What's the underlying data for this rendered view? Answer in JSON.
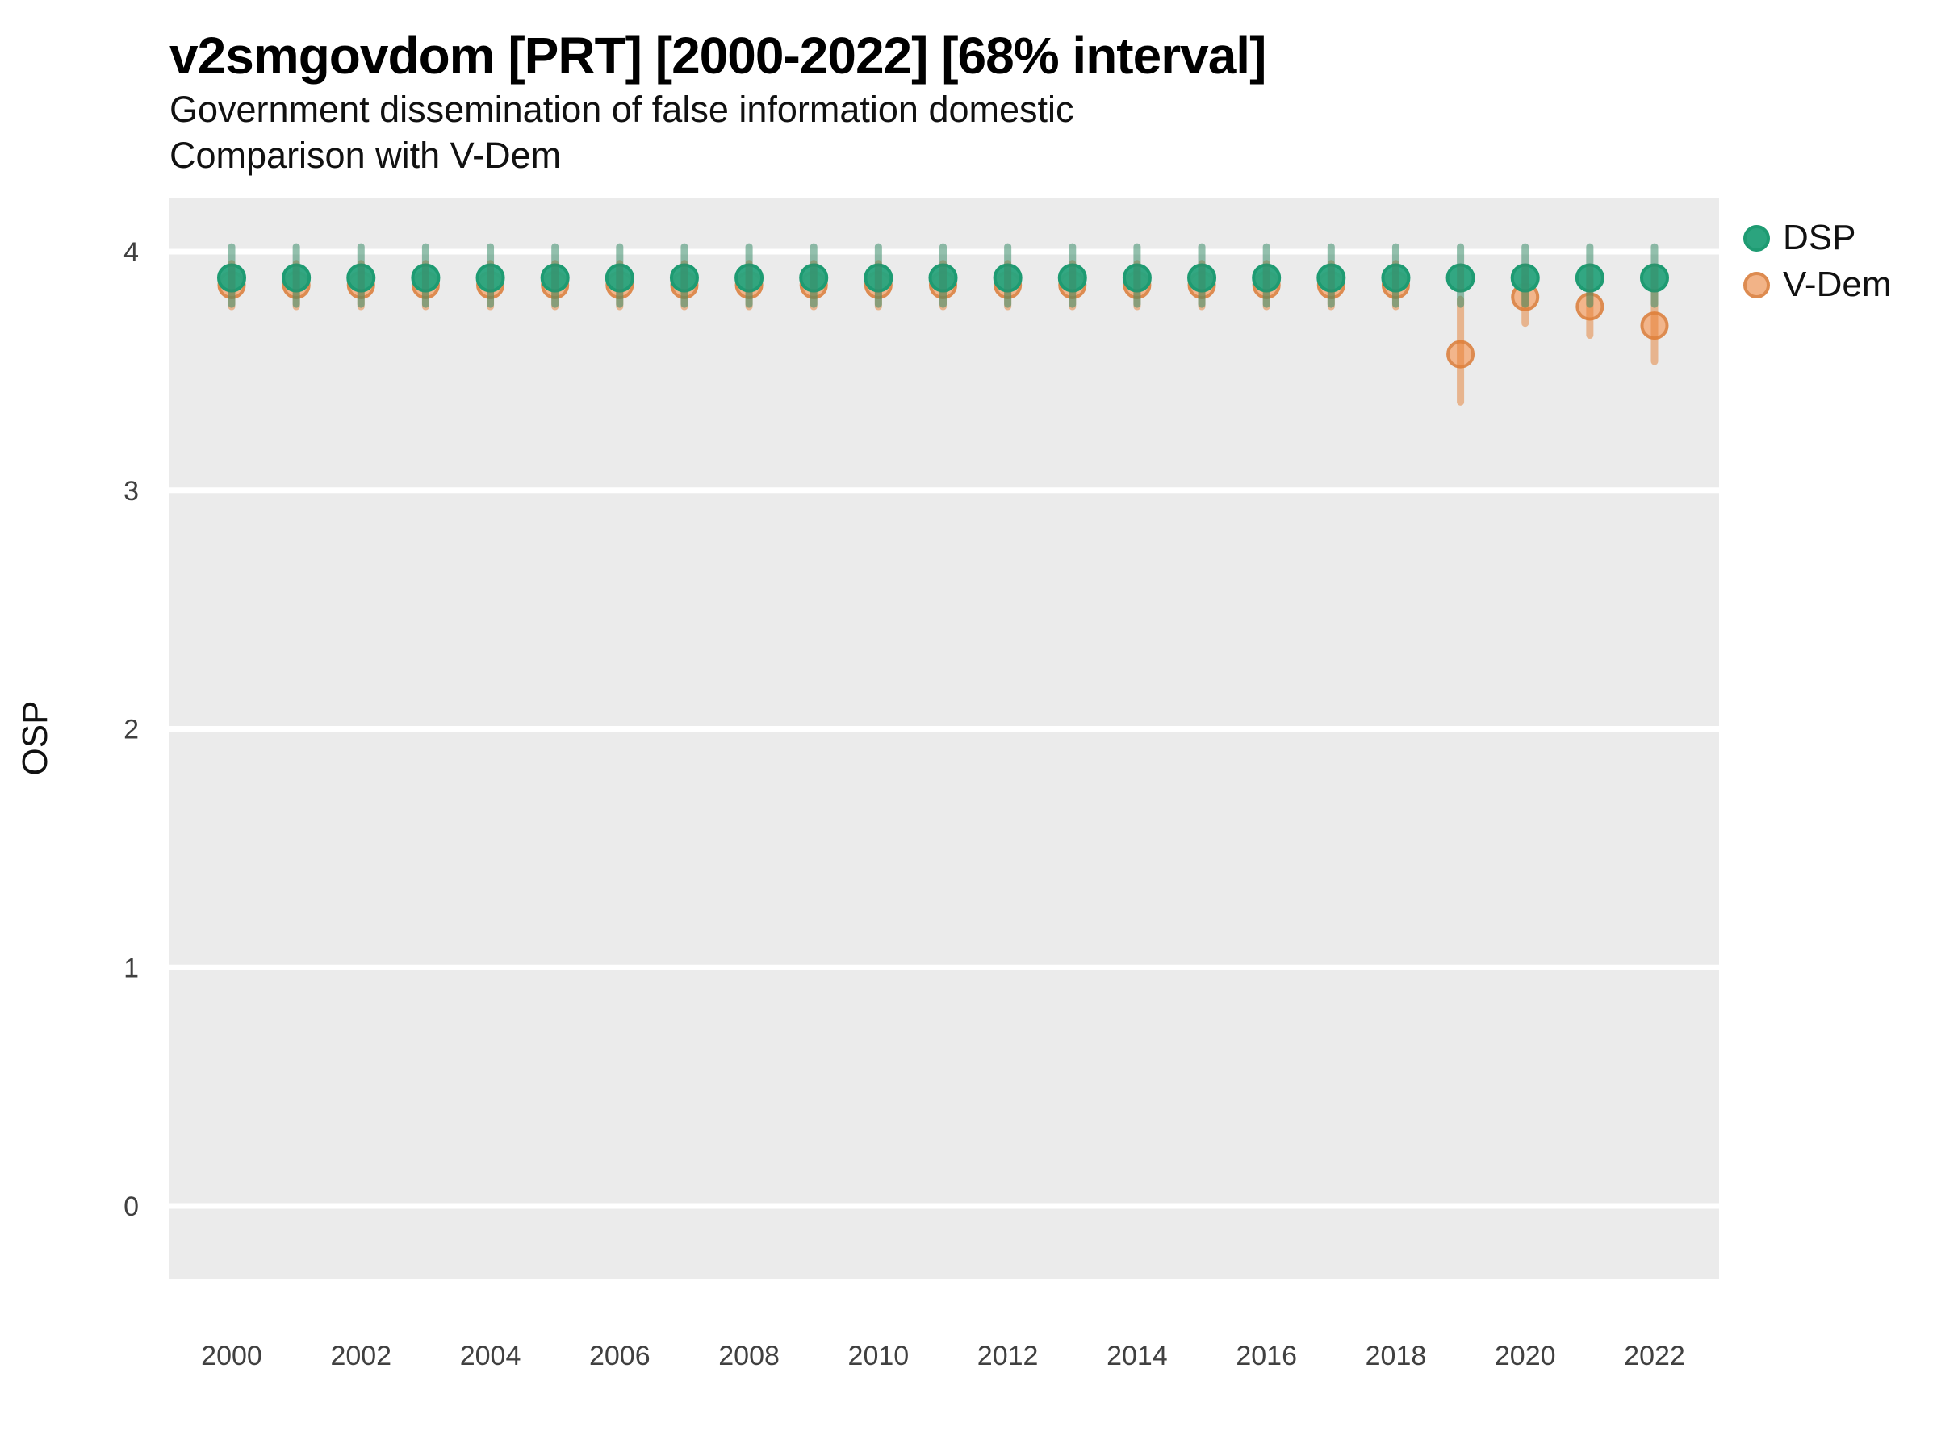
{
  "chart_data": {
    "type": "scatter",
    "title": "v2smgovdom [PRT] [2000-2022] [68% interval]",
    "subtitle": [
      "Government dissemination of false information domestic",
      "Comparison with V-Dem"
    ],
    "interval_note": "68% interval",
    "country": "PRT",
    "variable": "v2smgovdom",
    "xlabel": "",
    "ylabel": "OSP",
    "x": [
      2000,
      2001,
      2002,
      2003,
      2004,
      2005,
      2006,
      2007,
      2008,
      2009,
      2010,
      2011,
      2012,
      2013,
      2014,
      2015,
      2016,
      2017,
      2018,
      2019,
      2020,
      2021,
      2022
    ],
    "xticks": [
      2000,
      2002,
      2004,
      2006,
      2008,
      2010,
      2012,
      2014,
      2016,
      2018,
      2020,
      2022
    ],
    "yticks": [
      0,
      1,
      2,
      3,
      4
    ],
    "ylim": [
      -0.3,
      4.25
    ],
    "grid": "horizontal-major-only",
    "legend_position": "right",
    "panel_background": "#EBEBEB",
    "gridline_color": "#FFFFFF",
    "series": [
      {
        "name": "DSP",
        "point_color": "#2BA47E",
        "point_stroke": "#1E9B72",
        "bar_color": "rgba(58,141,105,0.55)",
        "values": [
          3.89,
          3.89,
          3.89,
          3.89,
          3.89,
          3.89,
          3.89,
          3.89,
          3.89,
          3.89,
          3.89,
          3.89,
          3.89,
          3.89,
          3.89,
          3.89,
          3.89,
          3.89,
          3.89,
          3.89,
          3.89,
          3.89,
          3.89
        ],
        "lo": [
          3.78,
          3.78,
          3.78,
          3.78,
          3.78,
          3.78,
          3.78,
          3.78,
          3.78,
          3.78,
          3.78,
          3.78,
          3.78,
          3.78,
          3.78,
          3.78,
          3.78,
          3.78,
          3.78,
          3.78,
          3.78,
          3.78,
          3.78
        ],
        "hi": [
          4.02,
          4.02,
          4.02,
          4.02,
          4.02,
          4.02,
          4.02,
          4.02,
          4.02,
          4.02,
          4.02,
          4.02,
          4.02,
          4.02,
          4.02,
          4.02,
          4.02,
          4.02,
          4.02,
          4.02,
          4.02,
          4.02,
          4.02
        ]
      },
      {
        "name": "V-Dem",
        "point_color": "#F2B387",
        "point_stroke": "#DD8B50",
        "bar_color": "rgba(227,125,49,0.5)",
        "values": [
          3.86,
          3.86,
          3.86,
          3.86,
          3.86,
          3.86,
          3.86,
          3.86,
          3.86,
          3.86,
          3.86,
          3.86,
          3.86,
          3.86,
          3.86,
          3.86,
          3.86,
          3.86,
          3.86,
          3.57,
          3.81,
          3.77,
          3.69
        ],
        "lo": [
          3.77,
          3.77,
          3.77,
          3.77,
          3.77,
          3.77,
          3.77,
          3.77,
          3.77,
          3.77,
          3.77,
          3.77,
          3.77,
          3.77,
          3.77,
          3.77,
          3.77,
          3.77,
          3.77,
          3.37,
          3.7,
          3.65,
          3.54
        ],
        "hi": [
          3.95,
          3.95,
          3.95,
          3.95,
          3.95,
          3.95,
          3.95,
          3.95,
          3.95,
          3.95,
          3.95,
          3.95,
          3.95,
          3.95,
          3.95,
          3.95,
          3.95,
          3.95,
          3.95,
          3.8,
          3.89,
          3.88,
          3.84
        ]
      }
    ]
  }
}
